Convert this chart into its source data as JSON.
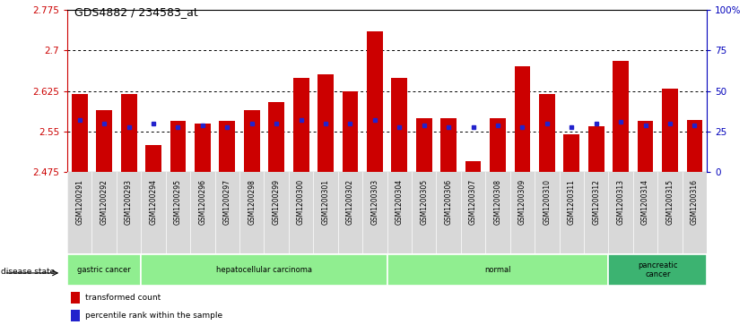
{
  "title": "GDS4882 / 234583_at",
  "samples": [
    "GSM1200291",
    "GSM1200292",
    "GSM1200293",
    "GSM1200294",
    "GSM1200295",
    "GSM1200296",
    "GSM1200297",
    "GSM1200298",
    "GSM1200299",
    "GSM1200300",
    "GSM1200301",
    "GSM1200302",
    "GSM1200303",
    "GSM1200304",
    "GSM1200305",
    "GSM1200306",
    "GSM1200307",
    "GSM1200308",
    "GSM1200309",
    "GSM1200310",
    "GSM1200311",
    "GSM1200312",
    "GSM1200313",
    "GSM1200314",
    "GSM1200315",
    "GSM1200316"
  ],
  "transformed_count": [
    2.62,
    2.59,
    2.62,
    2.525,
    2.57,
    2.565,
    2.57,
    2.59,
    2.605,
    2.65,
    2.655,
    2.625,
    2.735,
    2.65,
    2.575,
    2.575,
    2.495,
    2.575,
    2.67,
    2.62,
    2.545,
    2.56,
    2.68,
    2.57,
    2.63,
    2.572
  ],
  "percentile_rank": [
    32,
    30,
    28,
    30,
    28,
    29,
    28,
    30,
    30,
    32,
    30,
    30,
    32,
    28,
    29,
    28,
    28,
    29,
    28,
    30,
    28,
    30,
    31,
    29,
    30,
    29
  ],
  "disease_groups": [
    {
      "label": "gastric cancer",
      "start": 0,
      "end": 3,
      "color": "#90EE90"
    },
    {
      "label": "hepatocellular carcinoma",
      "start": 3,
      "end": 13,
      "color": "#90EE90"
    },
    {
      "label": "normal",
      "start": 13,
      "end": 22,
      "color": "#90EE90"
    },
    {
      "label": "pancreatic\ncancer",
      "start": 22,
      "end": 26,
      "color": "#3cb371"
    }
  ],
  "ymin": 2.475,
  "ymax": 2.775,
  "yticks": [
    2.475,
    2.55,
    2.625,
    2.7,
    2.775
  ],
  "ytick_labels": [
    "2.475",
    "2.55",
    "2.625",
    "2.7",
    "2.775"
  ],
  "right_yticks": [
    0,
    25,
    50,
    75,
    100
  ],
  "right_ytick_labels": [
    "0",
    "25",
    "50",
    "75",
    "100%"
  ],
  "bar_color": "#CC0000",
  "dot_color": "#2222CC",
  "bar_width": 0.65,
  "axis_color": "#CC0000",
  "right_axis_color": "#0000BB"
}
